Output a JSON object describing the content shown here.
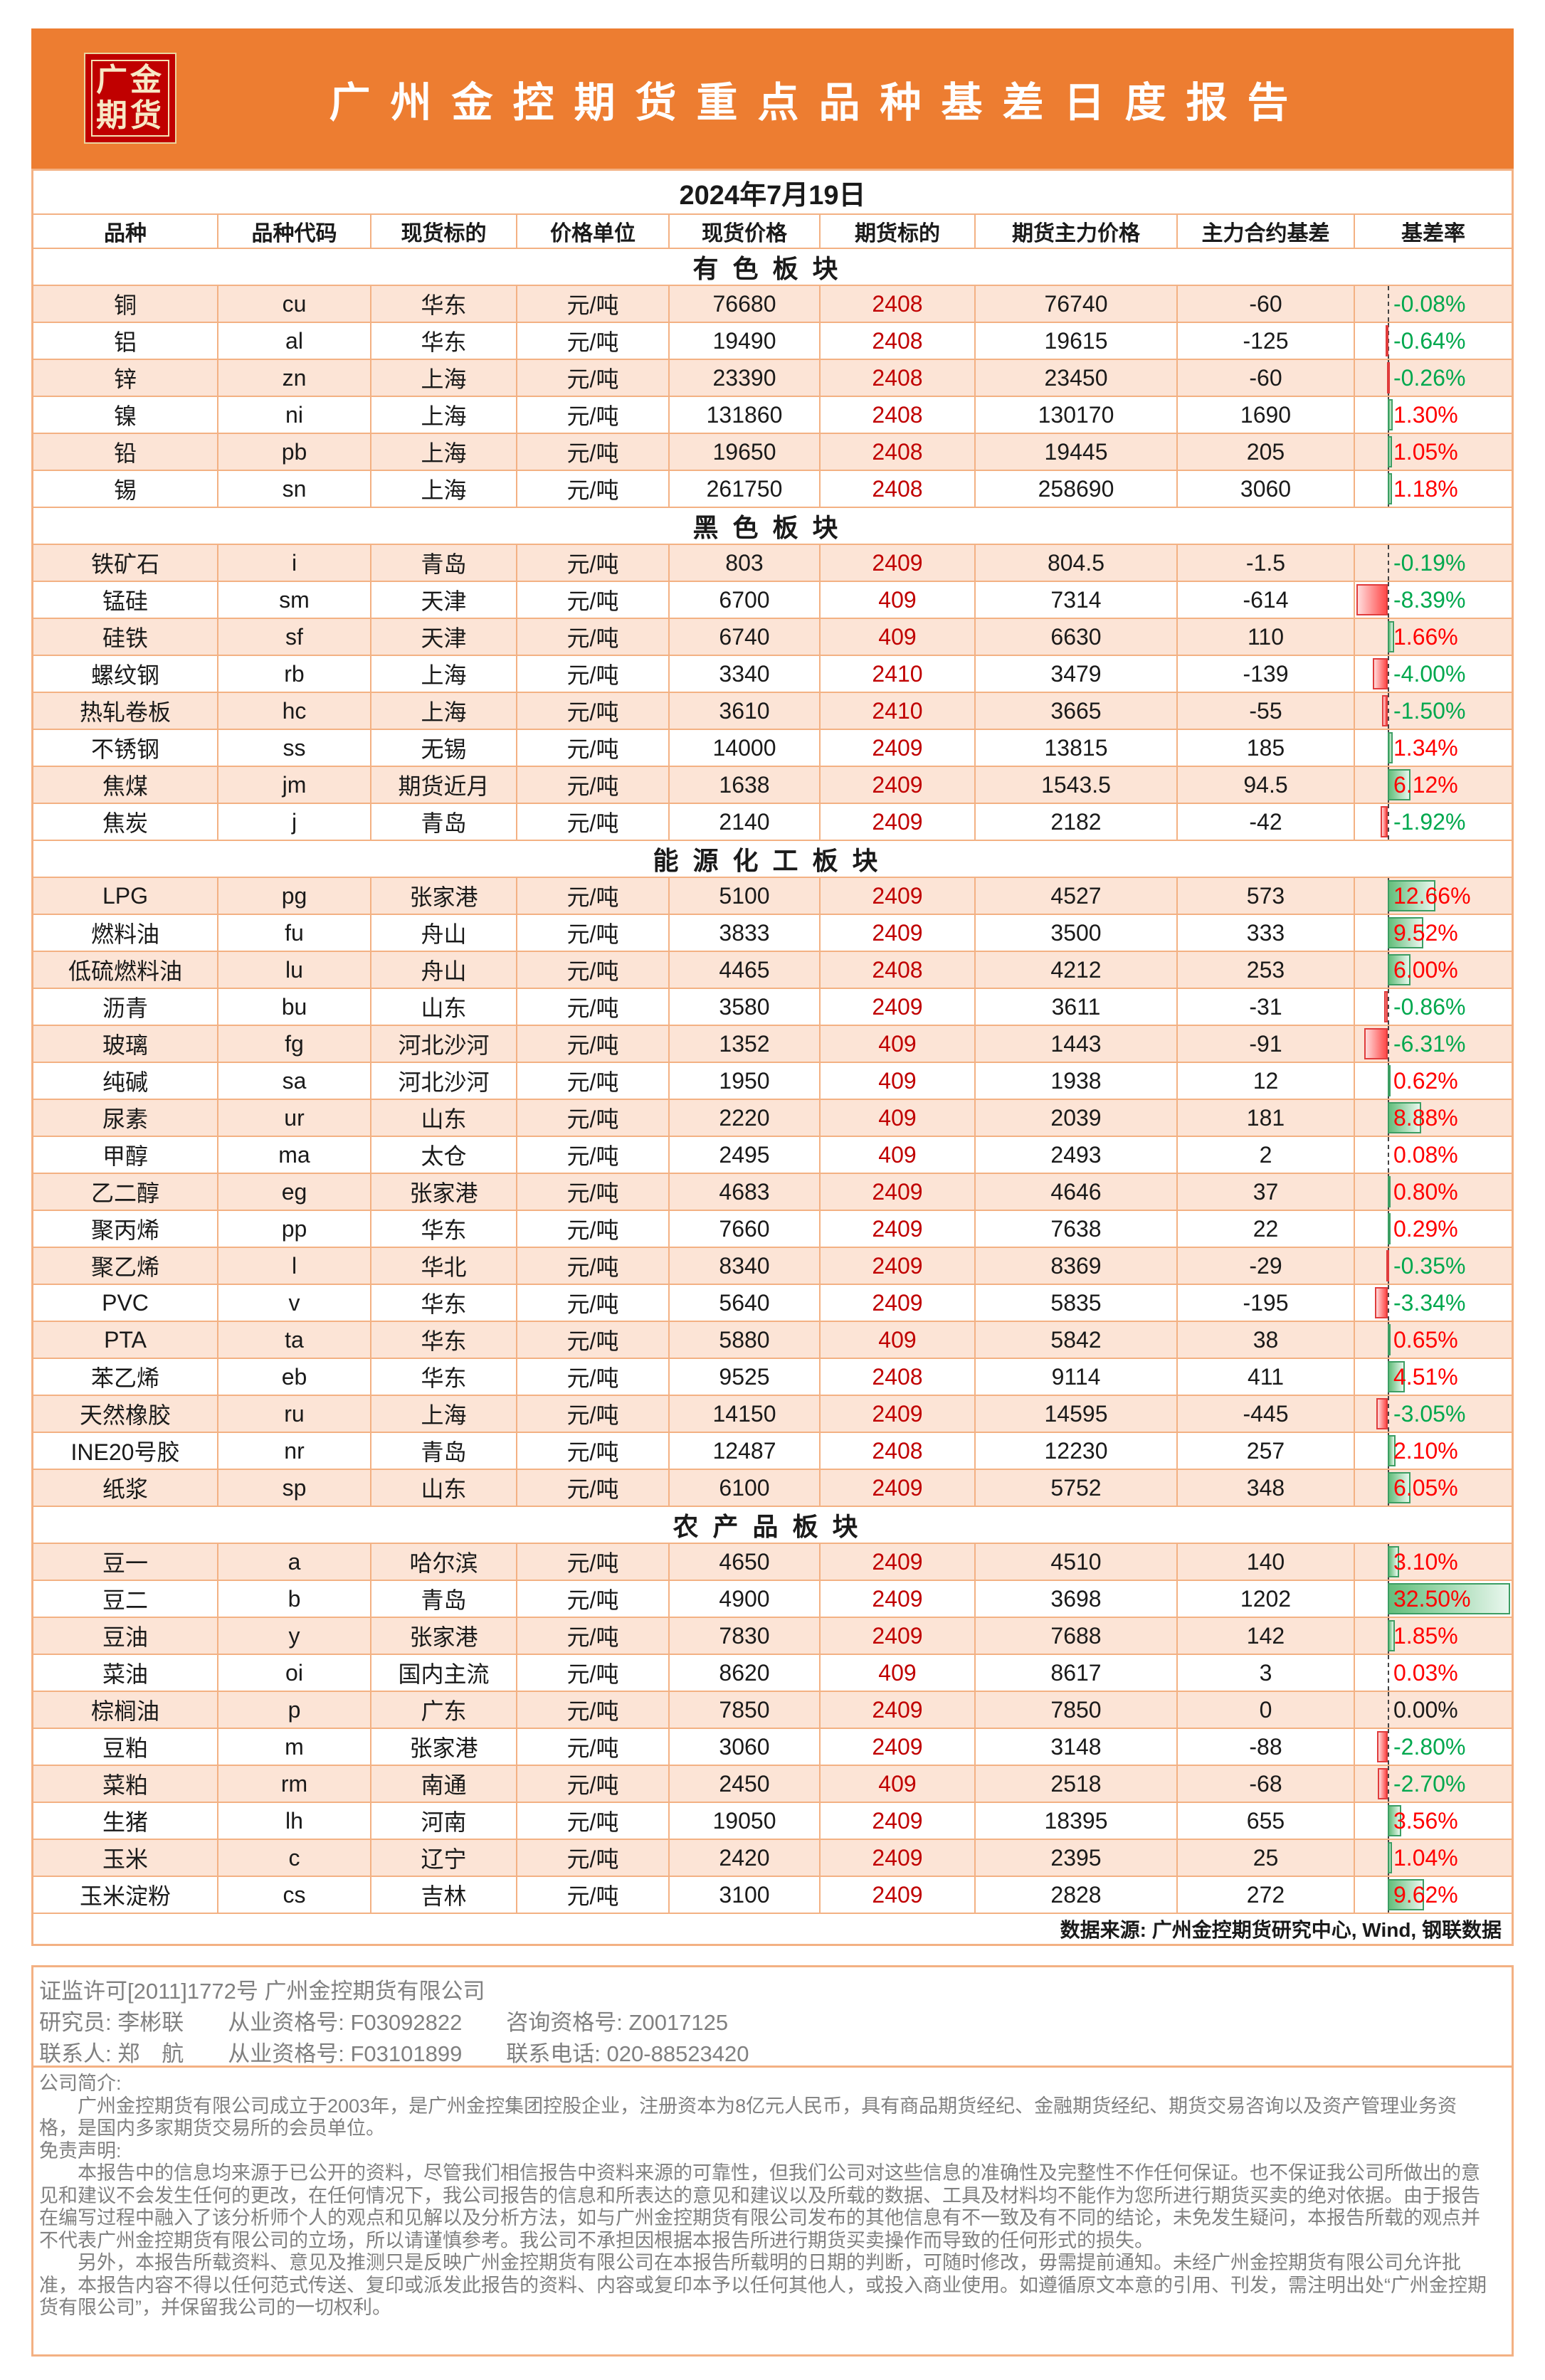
{
  "header": {
    "logo_top": "广金",
    "logo_bottom": "期货",
    "title": "广州金控期货重点品种基差日度报告"
  },
  "report_date": "2024年7月19日",
  "table": {
    "columns": [
      "品种",
      "品种代码",
      "现货标的",
      "价格单位",
      "现货价格",
      "期货标的",
      "期货主力价格",
      "主力合约基差",
      "基差率"
    ],
    "sections": [
      {
        "title": "有色板块",
        "rows": [
          [
            "铜",
            "cu",
            "华东",
            "元/吨",
            "76680",
            "2408",
            "76740",
            "-60",
            "-0.08%"
          ],
          [
            "铝",
            "al",
            "华东",
            "元/吨",
            "19490",
            "2408",
            "19615",
            "-125",
            "-0.64%"
          ],
          [
            "锌",
            "zn",
            "上海",
            "元/吨",
            "23390",
            "2408",
            "23450",
            "-60",
            "-0.26%"
          ],
          [
            "镍",
            "ni",
            "上海",
            "元/吨",
            "131860",
            "2408",
            "130170",
            "1690",
            "1.30%"
          ],
          [
            "铅",
            "pb",
            "上海",
            "元/吨",
            "19650",
            "2408",
            "19445",
            "205",
            "1.05%"
          ],
          [
            "锡",
            "sn",
            "上海",
            "元/吨",
            "261750",
            "2408",
            "258690",
            "3060",
            "1.18%"
          ]
        ]
      },
      {
        "title": "黑色板块",
        "rows": [
          [
            "铁矿石",
            "i",
            "青岛",
            "元/吨",
            "803",
            "2409",
            "804.5",
            "-1.5",
            "-0.19%"
          ],
          [
            "锰硅",
            "sm",
            "天津",
            "元/吨",
            "6700",
            "409",
            "7314",
            "-614",
            "-8.39%"
          ],
          [
            "硅铁",
            "sf",
            "天津",
            "元/吨",
            "6740",
            "409",
            "6630",
            "110",
            "1.66%"
          ],
          [
            "螺纹钢",
            "rb",
            "上海",
            "元/吨",
            "3340",
            "2410",
            "3479",
            "-139",
            "-4.00%"
          ],
          [
            "热轧卷板",
            "hc",
            "上海",
            "元/吨",
            "3610",
            "2410",
            "3665",
            "-55",
            "-1.50%"
          ],
          [
            "不锈钢",
            "ss",
            "无锡",
            "元/吨",
            "14000",
            "2409",
            "13815",
            "185",
            "1.34%"
          ],
          [
            "焦煤",
            "jm",
            "期货近月",
            "元/吨",
            "1638",
            "2409",
            "1543.5",
            "94.5",
            "6.12%"
          ],
          [
            "焦炭",
            "j",
            "青岛",
            "元/吨",
            "2140",
            "2409",
            "2182",
            "-42",
            "-1.92%"
          ]
        ]
      },
      {
        "title": "能源化工板块",
        "rows": [
          [
            "LPG",
            "pg",
            "张家港",
            "元/吨",
            "5100",
            "2409",
            "4527",
            "573",
            "12.66%"
          ],
          [
            "燃料油",
            "fu",
            "舟山",
            "元/吨",
            "3833",
            "2409",
            "3500",
            "333",
            "9.52%"
          ],
          [
            "低硫燃料油",
            "lu",
            "舟山",
            "元/吨",
            "4465",
            "2408",
            "4212",
            "253",
            "6.00%"
          ],
          [
            "沥青",
            "bu",
            "山东",
            "元/吨",
            "3580",
            "2409",
            "3611",
            "-31",
            "-0.86%"
          ],
          [
            "玻璃",
            "fg",
            "河北沙河",
            "元/吨",
            "1352",
            "409",
            "1443",
            "-91",
            "-6.31%"
          ],
          [
            "纯碱",
            "sa",
            "河北沙河",
            "元/吨",
            "1950",
            "409",
            "1938",
            "12",
            "0.62%"
          ],
          [
            "尿素",
            "ur",
            "山东",
            "元/吨",
            "2220",
            "409",
            "2039",
            "181",
            "8.88%"
          ],
          [
            "甲醇",
            "ma",
            "太仓",
            "元/吨",
            "2495",
            "409",
            "2493",
            "2",
            "0.08%"
          ],
          [
            "乙二醇",
            "eg",
            "张家港",
            "元/吨",
            "4683",
            "2409",
            "4646",
            "37",
            "0.80%"
          ],
          [
            "聚丙烯",
            "pp",
            "华东",
            "元/吨",
            "7660",
            "2409",
            "7638",
            "22",
            "0.29%"
          ],
          [
            "聚乙烯",
            "l",
            "华北",
            "元/吨",
            "8340",
            "2409",
            "8369",
            "-29",
            "-0.35%"
          ],
          [
            "PVC",
            "v",
            "华东",
            "元/吨",
            "5640",
            "2409",
            "5835",
            "-195",
            "-3.34%"
          ],
          [
            "PTA",
            "ta",
            "华东",
            "元/吨",
            "5880",
            "409",
            "5842",
            "38",
            "0.65%"
          ],
          [
            "苯乙烯",
            "eb",
            "华东",
            "元/吨",
            "9525",
            "2408",
            "9114",
            "411",
            "4.51%"
          ],
          [
            "天然橡胶",
            "ru",
            "上海",
            "元/吨",
            "14150",
            "2409",
            "14595",
            "-445",
            "-3.05%"
          ],
          [
            "INE20号胶",
            "nr",
            "青岛",
            "元/吨",
            "12487",
            "2408",
            "12230",
            "257",
            "2.10%"
          ],
          [
            "纸浆",
            "sp",
            "山东",
            "元/吨",
            "6100",
            "2409",
            "5752",
            "348",
            "6.05%"
          ]
        ]
      },
      {
        "title": "农产品板块",
        "rows": [
          [
            "豆一",
            "a",
            "哈尔滨",
            "元/吨",
            "4650",
            "2409",
            "4510",
            "140",
            "3.10%"
          ],
          [
            "豆二",
            "b",
            "青岛",
            "元/吨",
            "4900",
            "2409",
            "3698",
            "1202",
            "32.50%"
          ],
          [
            "豆油",
            "y",
            "张家港",
            "元/吨",
            "7830",
            "2409",
            "7688",
            "142",
            "1.85%"
          ],
          [
            "菜油",
            "oi",
            "国内主流",
            "元/吨",
            "8620",
            "409",
            "8617",
            "3",
            "0.03%"
          ],
          [
            "棕榈油",
            "p",
            "广东",
            "元/吨",
            "7850",
            "2409",
            "7850",
            "0",
            "0.00%"
          ],
          [
            "豆粕",
            "m",
            "张家港",
            "元/吨",
            "3060",
            "2409",
            "3148",
            "-88",
            "-2.80%"
          ],
          [
            "菜粕",
            "rm",
            "南通",
            "元/吨",
            "2450",
            "409",
            "2518",
            "-68",
            "-2.70%"
          ],
          [
            "生猪",
            "lh",
            "河南",
            "元/吨",
            "19050",
            "2409",
            "18395",
            "655",
            "3.56%"
          ],
          [
            "玉米",
            "c",
            "辽宁",
            "元/吨",
            "2420",
            "2409",
            "2395",
            "25",
            "1.04%"
          ],
          [
            "玉米淀粉",
            "cs",
            "吉林",
            "元/吨",
            "3100",
            "2409",
            "2828",
            "272",
            "9.62%"
          ]
        ]
      }
    ],
    "source_note": "数据来源: 广州金控期货研究中心, Wind, 钢联数据",
    "bar_scale": {
      "negative_max_pct": 8.39,
      "positive_max_pct": 32.5
    }
  },
  "colors": {
    "banner_orange": "#ED7D31",
    "logo_red": "#C00000",
    "logo_gold": "#F7E8C6",
    "grid_border": "#F3B183",
    "row_peach": "#FCE4D6",
    "rate_positive_text": "#FF0000",
    "rate_negative_text": "#00A84E",
    "contract_code_red": "#C00000",
    "bar_positive": "#63BE7B",
    "bar_negative": "#FF4949",
    "footer_gray": "#808080"
  },
  "footer": {
    "license_line": "证监许可[2011]1772号 广州金控期货有限公司",
    "researcher_line": "研究员: 李彬联　　从业资格号: F03092822　　咨询资格号: Z0017125",
    "contact_line": "联系人: 郑　航　　从业资格号: F03101899　　联系电话: 020-88523420",
    "company_profile_title": "公司简介:",
    "company_profile": "广州金控期货有限公司成立于2003年，是广州金控集团控股企业，注册资本为8亿元人民币，具有商品期货经纪、金融期货经纪、期货交易咨询以及资产管理业务资格，是国内多家期货交易所的会员单位。",
    "disclaimer_title": "免责声明:",
    "disclaimer_p1": "本报告中的信息均来源于已公开的资料，尽管我们相信报告中资料来源的可靠性，但我们公司对这些信息的准确性及完整性不作任何保证。也不保证我公司所做出的意见和建议不会发生任何的更改，在任何情况下，我公司报告的信息和所表达的意见和建议以及所载的数据、工具及材料均不能作为您所进行期货买卖的绝对依据。由于报告在编写过程中融入了该分析师个人的观点和见解以及分析方法，如与广州金控期货有限公司发布的其他信息有不一致及有不同的结论，未免发生疑问，本报告所载的观点并不代表广州金控期货有限公司的立场，所以请谨慎参考。我公司不承担因根据本报告所进行期货买卖操作而导致的任何形式的损失。",
    "disclaimer_p2": "另外，本报告所载资料、意见及推测只是反映广州金控期货有限公司在本报告所载明的日期的判断，可随时修改，毋需提前通知。未经广州金控期货有限公司允许批准，本报告内容不得以任何范式传送、复印或派发此报告的资料、内容或复印本予以任何其他人，或投入商业使用。如遵循原文本意的引用、刊发，需注明出处“广州金控期货有限公司”，并保留我公司的一切权利。"
  }
}
